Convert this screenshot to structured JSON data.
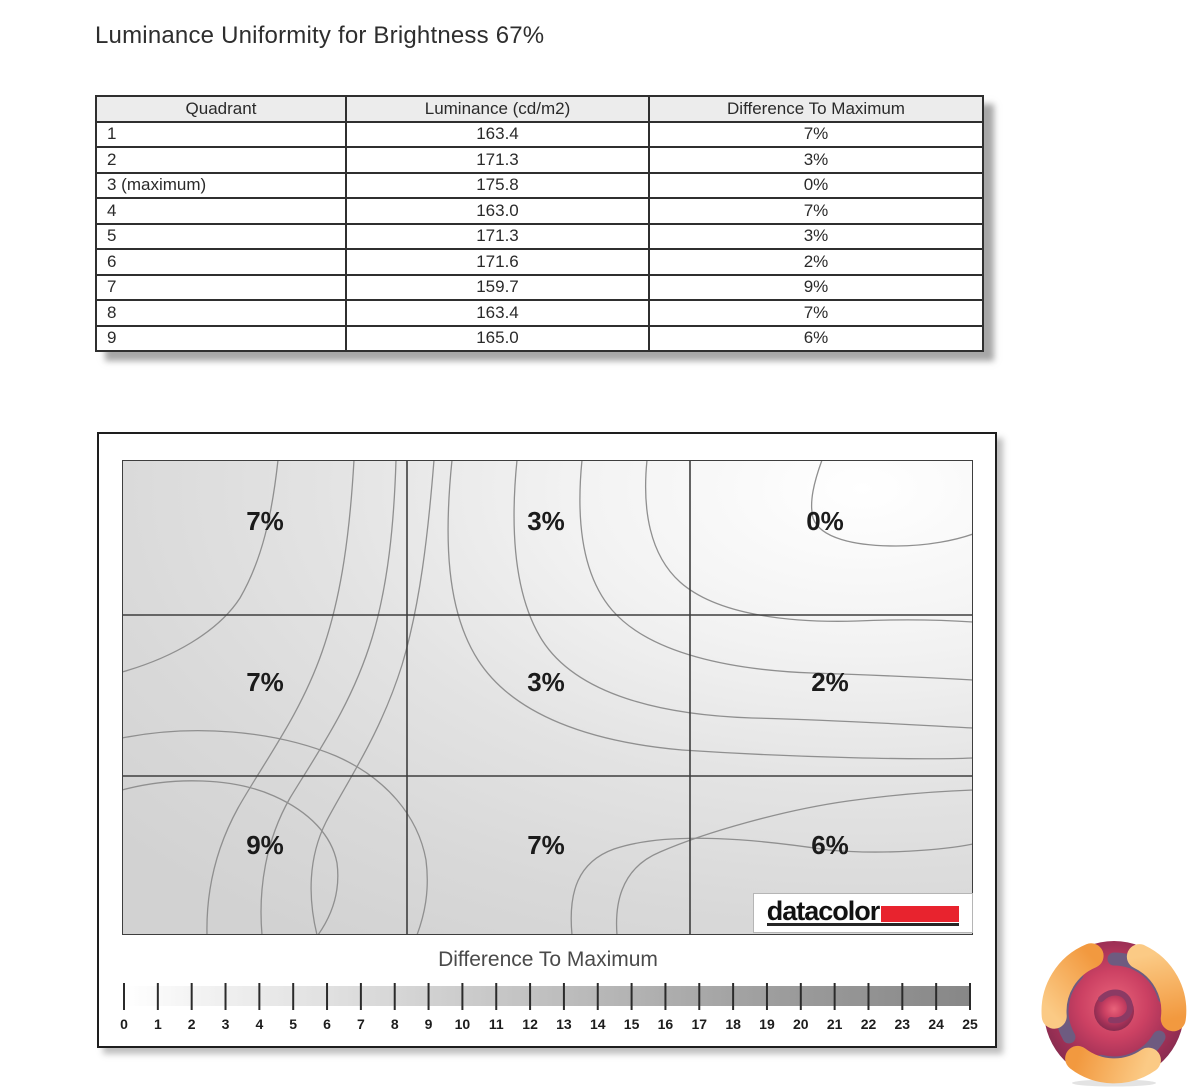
{
  "page": {
    "title": "Luminance Uniformity for Brightness 67%"
  },
  "table": {
    "headers": [
      "Quadrant",
      "Luminance (cd/m2)",
      "Difference To Maximum"
    ],
    "rows": [
      [
        "1",
        "163.4",
        "7%"
      ],
      [
        "2",
        "171.3",
        "3%"
      ],
      [
        "3 (maximum)",
        "175.8",
        "0%"
      ],
      [
        "4",
        "163.0",
        "7%"
      ],
      [
        "5",
        "171.3",
        "3%"
      ],
      [
        "6",
        "171.6",
        "2%"
      ],
      [
        "7",
        "159.7",
        "9%"
      ],
      [
        "8",
        "163.4",
        "7%"
      ],
      [
        "9",
        "165.0",
        "6%"
      ]
    ]
  },
  "chart_data": {
    "type": "heatmap",
    "subtype": "contour-uniformity-map",
    "title": "Luminance Uniformity for Brightness 67%",
    "grid_rows": 3,
    "grid_cols": 3,
    "cell_labels": [
      [
        "7%",
        "3%",
        "0%"
      ],
      [
        "7%",
        "3%",
        "2%"
      ],
      [
        "9%",
        "7%",
        "6%"
      ]
    ],
    "cell_values_percent": [
      [
        7,
        3,
        0
      ],
      [
        7,
        3,
        2
      ],
      [
        9,
        7,
        6
      ]
    ],
    "luminance_cd_m2": [
      [
        163.4,
        171.3,
        175.8
      ],
      [
        163.0,
        171.3,
        171.6
      ],
      [
        159.7,
        163.4,
        165.0
      ]
    ],
    "maximum_quadrant": "3 (maximum)",
    "colorbar": {
      "label": "Difference To Maximum",
      "min": 0,
      "max": 25,
      "ticks": [
        0,
        1,
        2,
        3,
        4,
        5,
        6,
        7,
        8,
        9,
        10,
        11,
        12,
        13,
        14,
        15,
        16,
        17,
        18,
        19,
        20,
        21,
        22,
        23,
        24,
        25
      ],
      "gradient_start": "#ffffff",
      "gradient_end": "#878787"
    }
  },
  "branding": {
    "wordmark": "datacolor",
    "red_bar_color": "#e8232e"
  },
  "colors": {
    "grid_line": "#3e3e3e",
    "contour_line": "#8f8f8f",
    "table_header_bg": "#ececec",
    "title_text": "#2e2e2e"
  }
}
